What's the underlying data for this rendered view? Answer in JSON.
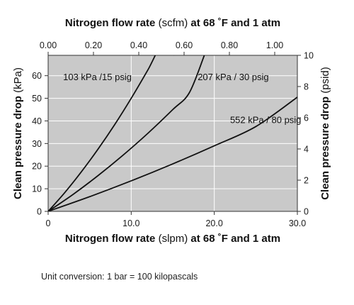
{
  "chart_data": {
    "type": "line",
    "x_bottom": {
      "label_main": "Nitrogen flow rate",
      "label_unit": "(slpm)",
      "label_tail": "at 68 ˚F and 1 atm",
      "lim": [
        0,
        30
      ],
      "ticks": [
        0,
        10,
        20,
        30
      ],
      "tick_labels": [
        "0",
        "10.0",
        "20.0",
        "30.0"
      ]
    },
    "x_top": {
      "label_main": "Nitrogen flow rate",
      "label_unit": "(scfm)",
      "label_tail": "at 68 ˚F and 1 atm",
      "lim": [
        0,
        1.1
      ],
      "ticks": [
        0,
        0.2,
        0.4,
        0.6,
        0.8,
        1.0
      ],
      "tick_labels": [
        "0.00",
        "0.20",
        "0.40",
        "0.60",
        "0.80",
        "1.00"
      ]
    },
    "y_left": {
      "label_main": "Clean pressure drop",
      "label_unit": "(kPa)",
      "lim": [
        0,
        69
      ],
      "ticks": [
        0,
        10,
        20,
        30,
        40,
        50,
        60
      ],
      "tick_labels": [
        "0",
        "10",
        "20",
        "30",
        "40",
        "50",
        "60"
      ]
    },
    "y_right": {
      "label_main": "Clean pressure drop",
      "label_unit": "(psid)",
      "lim": [
        0,
        10
      ],
      "ticks": [
        0,
        2,
        4,
        6,
        8,
        10
      ],
      "tick_labels": [
        "0",
        "2",
        "4",
        "6",
        "8",
        "10"
      ]
    },
    "grid": true,
    "background": "#c9c9c9",
    "line_color": "#111111",
    "series": [
      {
        "name": "103 kPa /15 psig",
        "x": [
          0,
          2,
          4,
          6,
          8,
          10,
          12,
          14,
          15.2
        ],
        "y": [
          0,
          8.3,
          17.5,
          27.5,
          38.3,
          50,
          62.5,
          75.5,
          69
        ]
      },
      {
        "name": "207 kPa / 30 psig",
        "x": [
          0,
          3,
          6,
          9,
          12,
          15,
          17,
          18.8
        ],
        "y": [
          0,
          7.5,
          15.8,
          24.8,
          34.5,
          45,
          52.5,
          69
        ]
      },
      {
        "name": "552 kPa / 80 psig",
        "x": [
          0,
          5,
          10,
          15,
          20,
          25,
          30
        ],
        "y": [
          0,
          6.5,
          13.5,
          21,
          29,
          37.5,
          50.5
        ]
      }
    ]
  },
  "footer": {
    "note": "Unit conversion: 1 bar = 100 kilopascals"
  }
}
